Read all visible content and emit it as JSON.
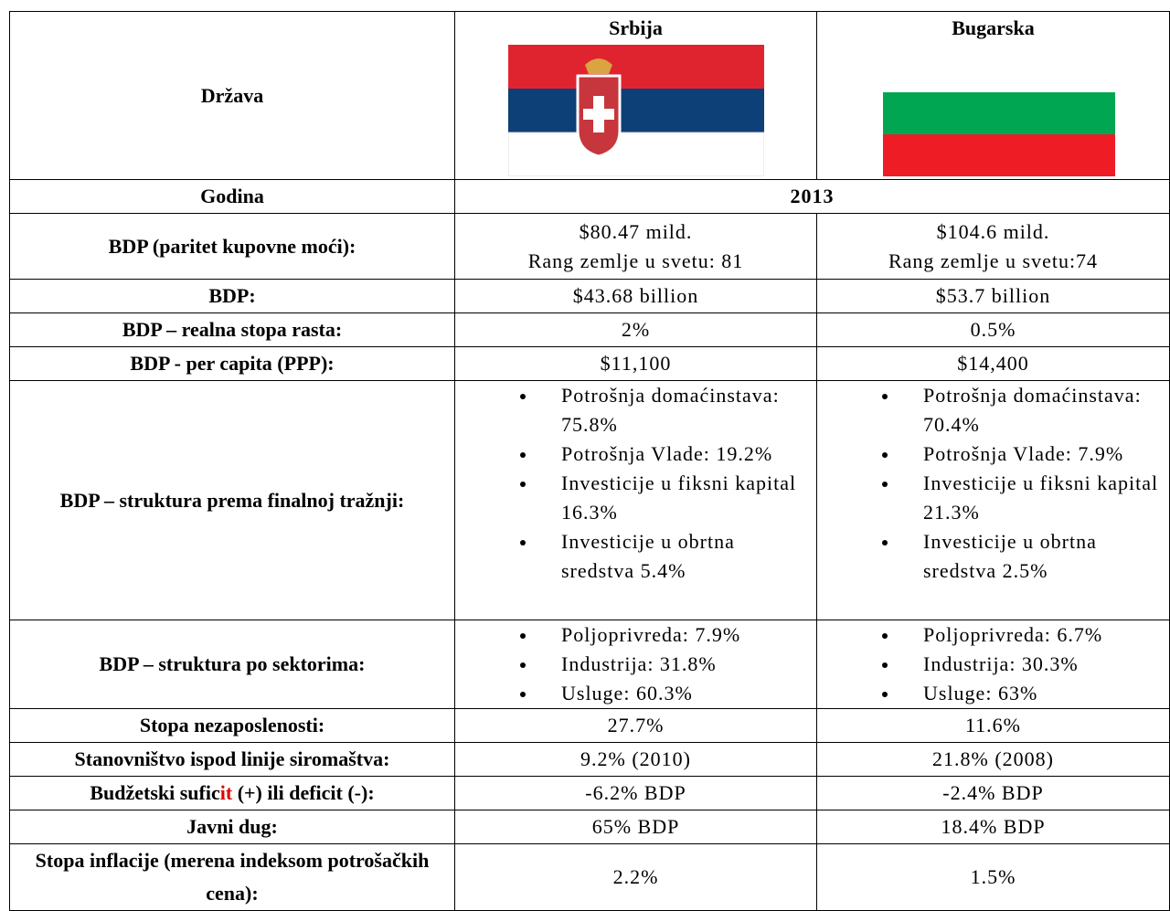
{
  "header": {
    "label": "Država",
    "countries": [
      "Srbija",
      "Bugarska"
    ]
  },
  "rows": [
    {
      "label": "Godina",
      "value": "2013"
    },
    {
      "label": "BDP (paritet kupovne moći):",
      "cells": [
        [
          "$80.47 mild.",
          "Rang zemlje u svetu: 81"
        ],
        [
          "$104.6 mild.",
          "Rang zemlje u svetu:74"
        ]
      ]
    },
    {
      "label": "BDP:",
      "cells": [
        [
          "$43.68 billion"
        ],
        [
          "$53.7 billion"
        ]
      ]
    },
    {
      "label": "BDP – realna stopa rasta:",
      "cells": [
        [
          "2%"
        ],
        [
          "0.5%"
        ]
      ]
    },
    {
      "label": "BDP - per capita (PPP):",
      "cells": [
        [
          "$11,100"
        ],
        [
          "$14,400"
        ]
      ]
    },
    {
      "label": "BDP – struktura prema finalnoj tražnji:",
      "bullets": [
        [
          "Potrošnja domaćinstava: 75.8%",
          "Potrošnja Vlade: 19.2%",
          "Investicije u fiksni kapital  16.3%",
          "Investicije u obrtna sredstva 5.4%"
        ],
        [
          "Potrošnja domaćinstava: 70.4%",
          "Potrošnja Vlade: 7.9%",
          "Investicije u fiksni kapital  21.3%",
          "Investicije u obrtna sredstva  2.5%"
        ]
      ]
    },
    {
      "label": "BDP – struktura po sektorima:",
      "bullets": [
        [
          "Poljoprivreda: 7.9%",
          "Industrija: 31.8%",
          "Usluge: 60.3%"
        ],
        [
          "Poljoprivreda: 6.7%",
          "Industrija: 30.3%",
          "Usluge: 63%"
        ]
      ]
    },
    {
      "label": "Stopa nezaposlenosti:",
      "cells": [
        [
          "27.7%"
        ],
        [
          "11.6%"
        ]
      ]
    },
    {
      "label": "Stanovništvo ispod linije siromaštva:",
      "cells": [
        [
          "9.2% (2010)"
        ],
        [
          "21.8% (2008)"
        ]
      ]
    },
    {
      "label_parts": [
        "Budžetski sufic",
        "it",
        " (+) ili deficit (-):"
      ],
      "cells": [
        [
          "-6.2% BDP"
        ],
        [
          "-2.4% BDP"
        ]
      ]
    },
    {
      "label": "Javni dug:",
      "cells": [
        [
          "65% BDP"
        ],
        [
          "18.4% BDP"
        ]
      ]
    },
    {
      "label": "Stopa inflacije (merena indeksom potrošačkih cena):",
      "cells": [
        [
          "2.2%"
        ],
        [
          "1.5%"
        ]
      ]
    }
  ]
}
